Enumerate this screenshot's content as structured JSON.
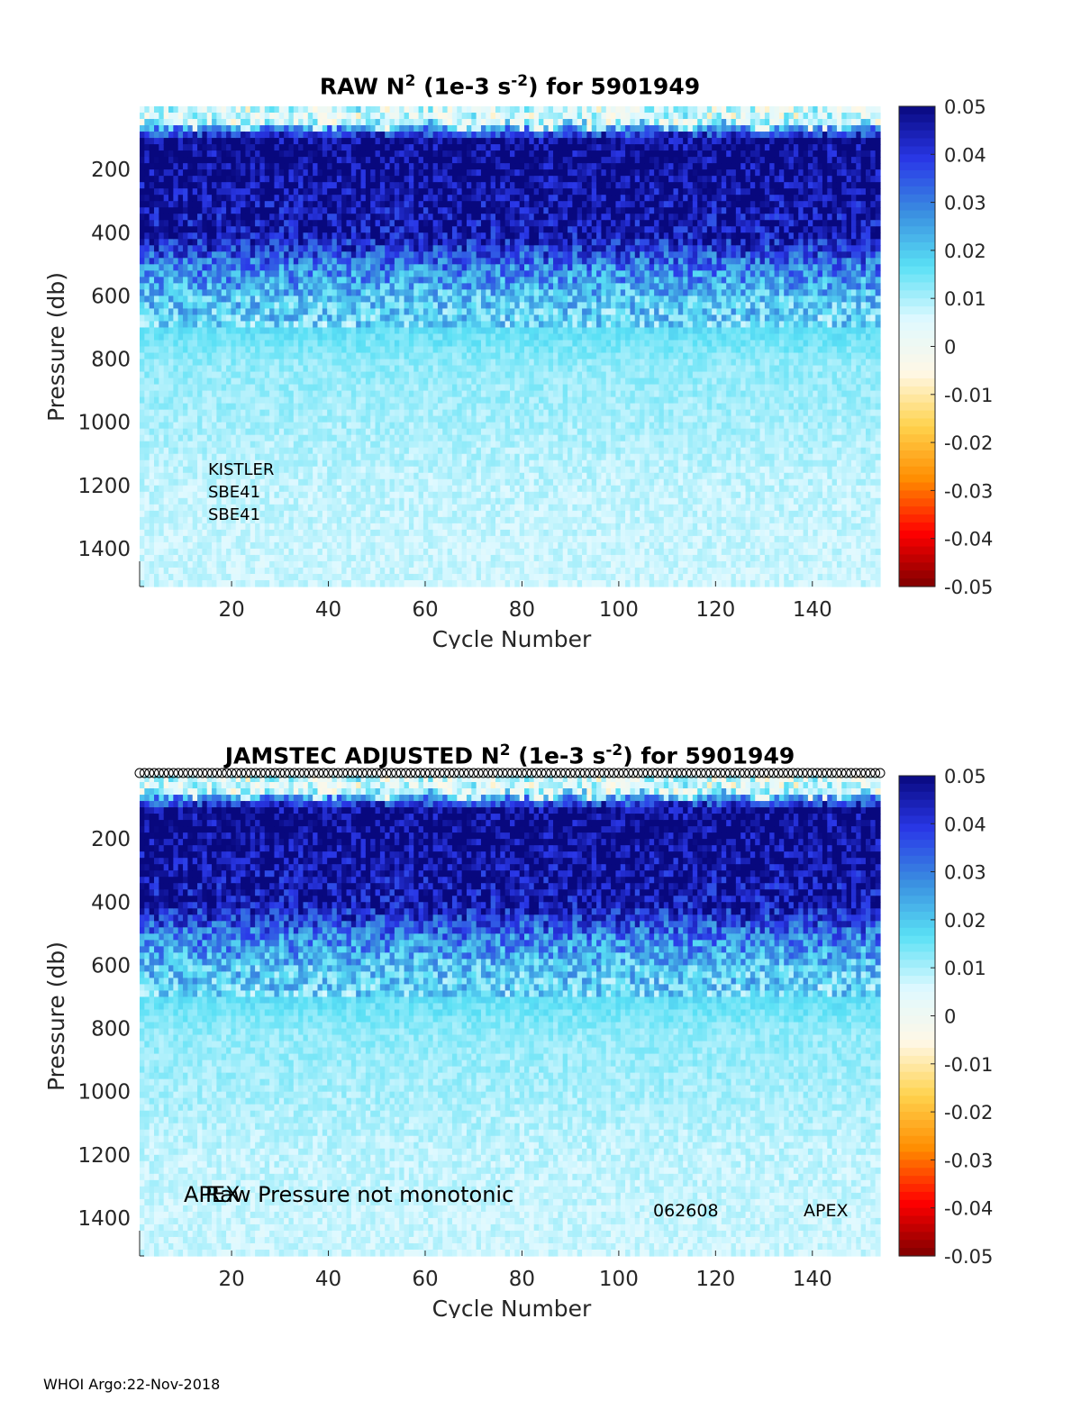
{
  "footer": "WHOI Argo:22-Nov-2018",
  "colorbar": {
    "ticks": [
      "0.05",
      "0.04",
      "0.03",
      "0.02",
      "0.01",
      "0",
      "-0.01",
      "-0.02",
      "-0.03",
      "-0.04",
      "-0.05"
    ],
    "range": [
      -0.05,
      0.05
    ],
    "colors": [
      "#7f0000",
      "#ff0000",
      "#ff8c00",
      "#ffd24d",
      "#fff8e6",
      "#dff9ff",
      "#59e0f5",
      "#3a8fe0",
      "#2a38e8",
      "#08087e"
    ]
  },
  "chart_data": [
    {
      "type": "heatmap",
      "title_prefix": "RAW N",
      "title_sup1": "2",
      "title_mid": " (1e-3 s",
      "title_sup2": "-2",
      "title_suffix": ") for 5901949",
      "xlabel": "Cycle Number",
      "ylabel": "Pressure (db)",
      "xlim": [
        1,
        154
      ],
      "ylim": [
        0,
        1520
      ],
      "xticks": [
        "20",
        "40",
        "60",
        "80",
        "100",
        "120",
        "140"
      ],
      "yticks": [
        "200",
        "400",
        "600",
        "800",
        "1000",
        "1200",
        "1400"
      ],
      "annotations": [
        "KISTLER",
        "SBE41",
        "SBE41"
      ],
      "profile_summary": {
        "pressure_db": [
          20,
          100,
          200,
          400,
          500,
          600,
          800,
          1000,
          1200,
          1500
        ],
        "n2_typical": [
          0.005,
          0.05,
          0.05,
          0.045,
          0.03,
          0.02,
          0.012,
          0.01,
          0.008,
          0.007
        ]
      }
    },
    {
      "type": "heatmap",
      "title_prefix": "JAMSTEC  ADJUSTED N",
      "title_sup1": "2",
      "title_mid": " (1e-3 s",
      "title_sup2": "-2",
      "title_suffix": ") for 5901949",
      "xlabel": "Cycle Number",
      "ylabel": "Pressure (db)",
      "xlim": [
        1,
        154
      ],
      "ylim": [
        0,
        1520
      ],
      "xticks": [
        "20",
        "40",
        "60",
        "80",
        "100",
        "120",
        "140"
      ],
      "yticks": [
        "200",
        "400",
        "600",
        "800",
        "1000",
        "1200",
        "1400"
      ],
      "annotations": {
        "apex_left": "APEX",
        "warning": "Raw Pressure not monotonic",
        "code": "062608",
        "apex_right": "APEX"
      },
      "top_markers": "o",
      "profile_summary": {
        "pressure_db": [
          20,
          100,
          200,
          400,
          500,
          600,
          800,
          1000,
          1200,
          1500
        ],
        "n2_typical": [
          0.005,
          0.05,
          0.05,
          0.045,
          0.03,
          0.02,
          0.012,
          0.01,
          0.008,
          0.007
        ]
      }
    }
  ]
}
